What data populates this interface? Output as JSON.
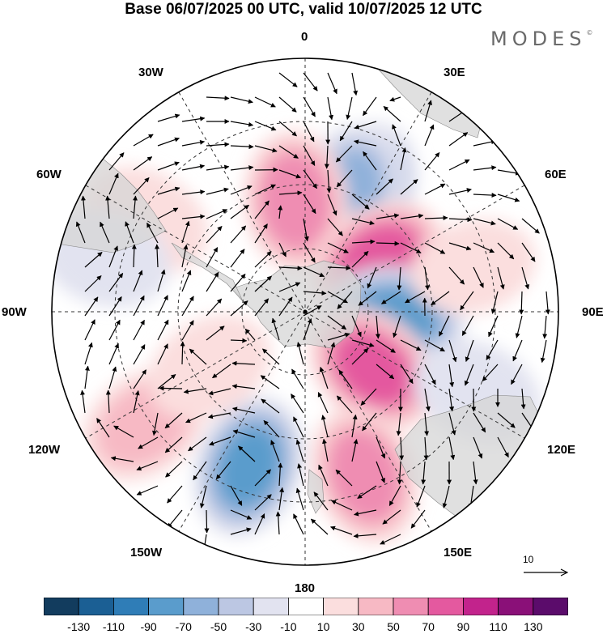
{
  "title": "Base 06/07/2025 00 UTC, valid 10/07/2025 12 UTC",
  "brand": "MODES",
  "brand_mark": "©",
  "lon_labels": {
    "top": "0",
    "e30": "30E",
    "e60": "60E",
    "e90": "90E",
    "e120": "120E",
    "e150": "150E",
    "bottom": "180",
    "w150": "150W",
    "w120": "120W",
    "w90": "90W",
    "w60": "60W",
    "w30": "30W"
  },
  "reference_vector_label": "10",
  "colorbar": {
    "colors": [
      "#123c5e",
      "#1b5f94",
      "#2f7db7",
      "#5a9ccc",
      "#8fb1da",
      "#bcc7e3",
      "#e2e3f0",
      "#ffffff",
      "#fbdede",
      "#f7b9c4",
      "#ef8db2",
      "#e4599f",
      "#c2238c",
      "#8a1078",
      "#5b0c6b"
    ],
    "tick_labels": [
      "-130",
      "-110",
      "-90",
      "-70",
      "-50",
      "-30",
      "-10",
      "10",
      "30",
      "50",
      "70",
      "90",
      "110",
      "130"
    ]
  },
  "anomaly_centers": [
    {
      "lon": 25,
      "lat": -48,
      "value": -80
    },
    {
      "lon": 20,
      "lat": -50,
      "value": -60
    },
    {
      "lon": -5,
      "lat": -55,
      "value": 75
    },
    {
      "lon": 55,
      "lat": -62,
      "value": 95
    },
    {
      "lon": 95,
      "lat": -62,
      "value": -90
    },
    {
      "lon": 130,
      "lat": -62,
      "value": 90
    },
    {
      "lon": 160,
      "lat": -35,
      "value": 70
    },
    {
      "lon": -160,
      "lat": -38,
      "value": -85
    },
    {
      "lon": -125,
      "lat": -28,
      "value": 45
    },
    {
      "lon": -120,
      "lat": -55,
      "value": 25
    },
    {
      "lon": -60,
      "lat": -32,
      "value": 30
    },
    {
      "lon": -75,
      "lat": -25,
      "value": -25
    },
    {
      "lon": 115,
      "lat": -30,
      "value": -30
    },
    {
      "lon": 75,
      "lat": -35,
      "value": 20
    }
  ]
}
